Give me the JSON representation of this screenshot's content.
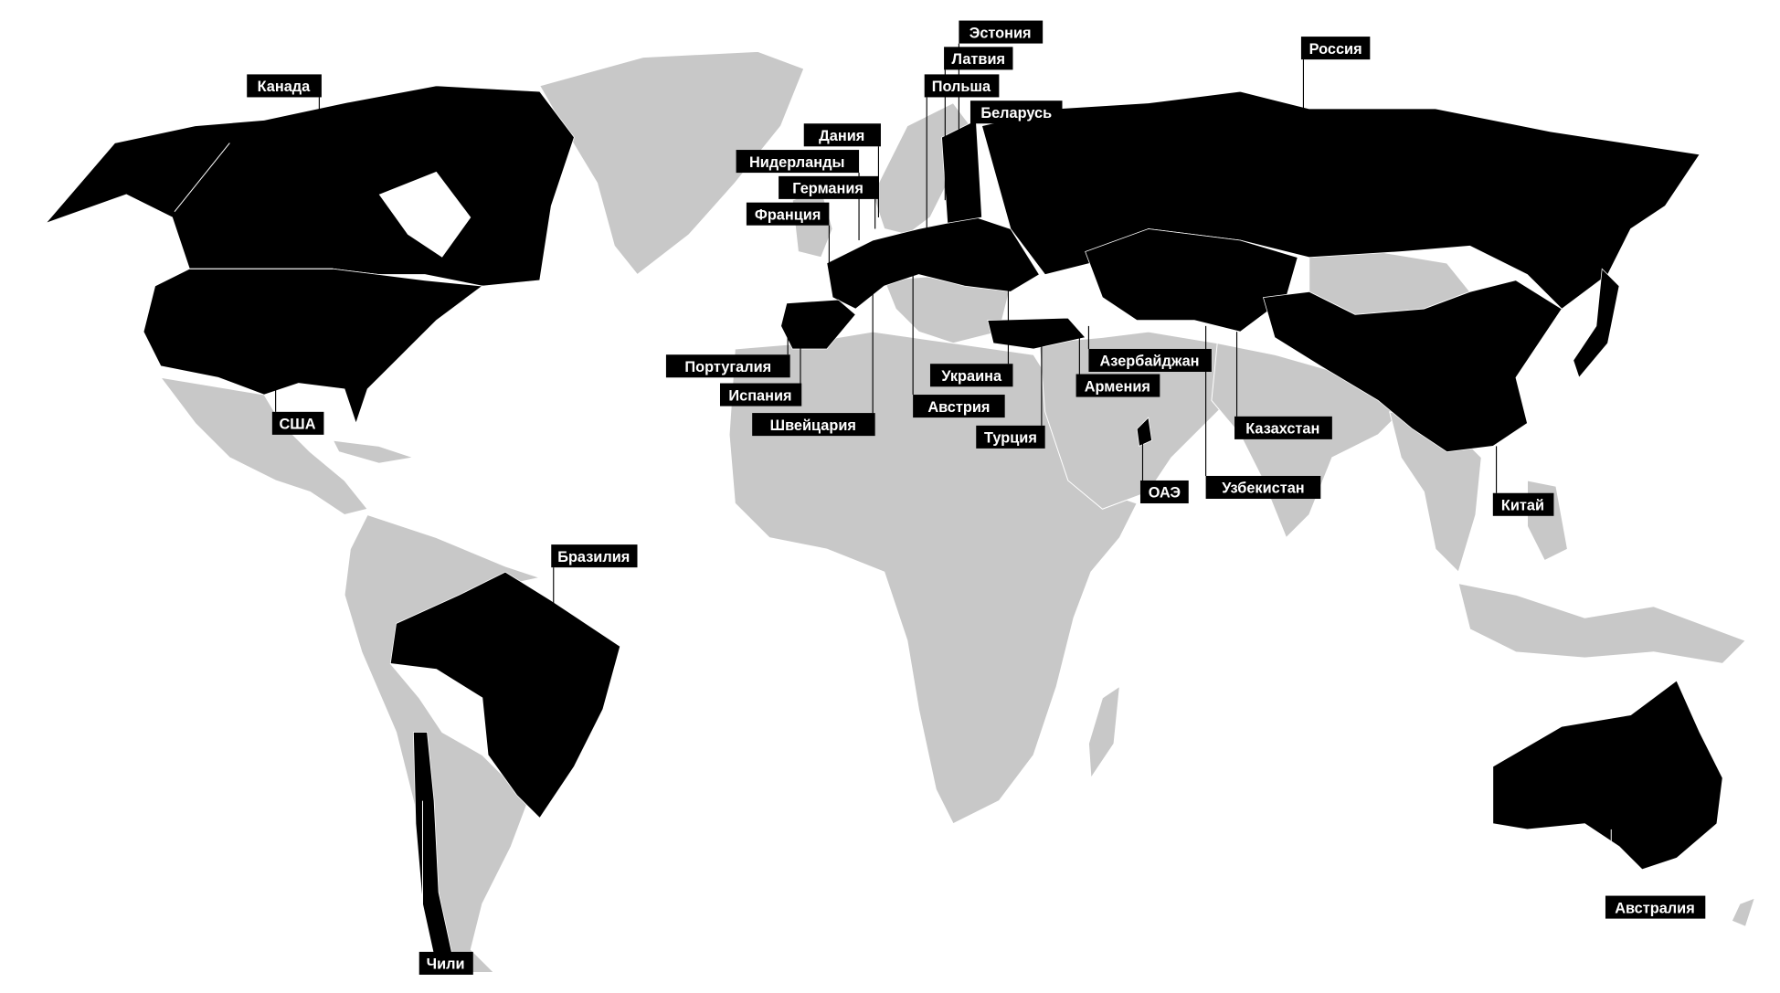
{
  "colors": {
    "highlighted": "#000000",
    "other": "#c8c8c8",
    "background": "#ffffff",
    "label_text": "#ffffff"
  },
  "labels": [
    {
      "id": "canada",
      "text": "Канада"
    },
    {
      "id": "estonia",
      "text": "Эстония"
    },
    {
      "id": "latvia",
      "text": "Латвия"
    },
    {
      "id": "poland",
      "text": "Польша"
    },
    {
      "id": "belarus",
      "text": "Беларусь"
    },
    {
      "id": "russia",
      "text": "Россия"
    },
    {
      "id": "denmark",
      "text": "Дания"
    },
    {
      "id": "netherlands",
      "text": "Нидерланды"
    },
    {
      "id": "germany",
      "text": "Германия"
    },
    {
      "id": "france",
      "text": "Франция"
    },
    {
      "id": "portugal",
      "text": "Португалия"
    },
    {
      "id": "spain",
      "text": "Испания"
    },
    {
      "id": "switzerland",
      "text": "Швейцария"
    },
    {
      "id": "ukraine",
      "text": "Украина"
    },
    {
      "id": "austria",
      "text": "Австрия"
    },
    {
      "id": "turkey",
      "text": "Турция"
    },
    {
      "id": "azerbaijan",
      "text": "Азербайджан"
    },
    {
      "id": "armenia",
      "text": "Армения"
    },
    {
      "id": "kazakhstan",
      "text": "Казахстан"
    },
    {
      "id": "uzbekistan",
      "text": "Узбекистан"
    },
    {
      "id": "uae",
      "text": "ОАЭ"
    },
    {
      "id": "china",
      "text": "Китай"
    },
    {
      "id": "usa",
      "text": "США"
    },
    {
      "id": "brazil",
      "text": "Бразилия"
    },
    {
      "id": "chile",
      "text": "Чили"
    },
    {
      "id": "australia",
      "text": "Австралия"
    }
  ]
}
